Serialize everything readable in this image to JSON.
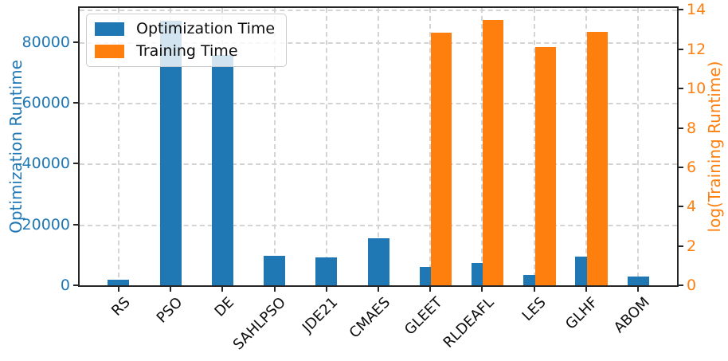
{
  "chart_data": {
    "type": "bar",
    "title": "",
    "categories": [
      "RS",
      "PSO",
      "DE",
      "SAHLPSO",
      "JDE21",
      "CMAES",
      "GLEET",
      "RLDEAFL",
      "LES",
      "GLHF",
      "ABOM"
    ],
    "series": [
      {
        "name": "Optimization Time",
        "axis": "left",
        "color": "#1f77b4",
        "values": [
          1800,
          87000,
          75700,
          9600,
          9200,
          15500,
          6000,
          7400,
          3500,
          9400,
          2900
        ]
      },
      {
        "name": "Training Time",
        "axis": "right",
        "color": "#ff7f0e",
        "values": [
          null,
          null,
          null,
          null,
          null,
          null,
          12.85,
          13.5,
          12.1,
          12.9,
          null
        ]
      }
    ],
    "left_axis": {
      "label": "Optimization Runtime",
      "color": "#1f77b4",
      "ticks": [
        0,
        20000,
        40000,
        60000,
        80000
      ],
      "range": [
        0,
        91200
      ]
    },
    "right_axis": {
      "label": "log(Training Runtime)",
      "color": "#ff7f0e",
      "ticks": [
        0,
        2,
        4,
        6,
        8,
        10,
        12,
        14
      ],
      "range": [
        0,
        14.1
      ]
    },
    "legend": {
      "position": "upper left",
      "entries": [
        "Optimization Time",
        "Training Time"
      ]
    },
    "grid": {
      "horizontal": true,
      "vertical": true,
      "style": "dashed",
      "color": "#d4d4d4"
    }
  }
}
